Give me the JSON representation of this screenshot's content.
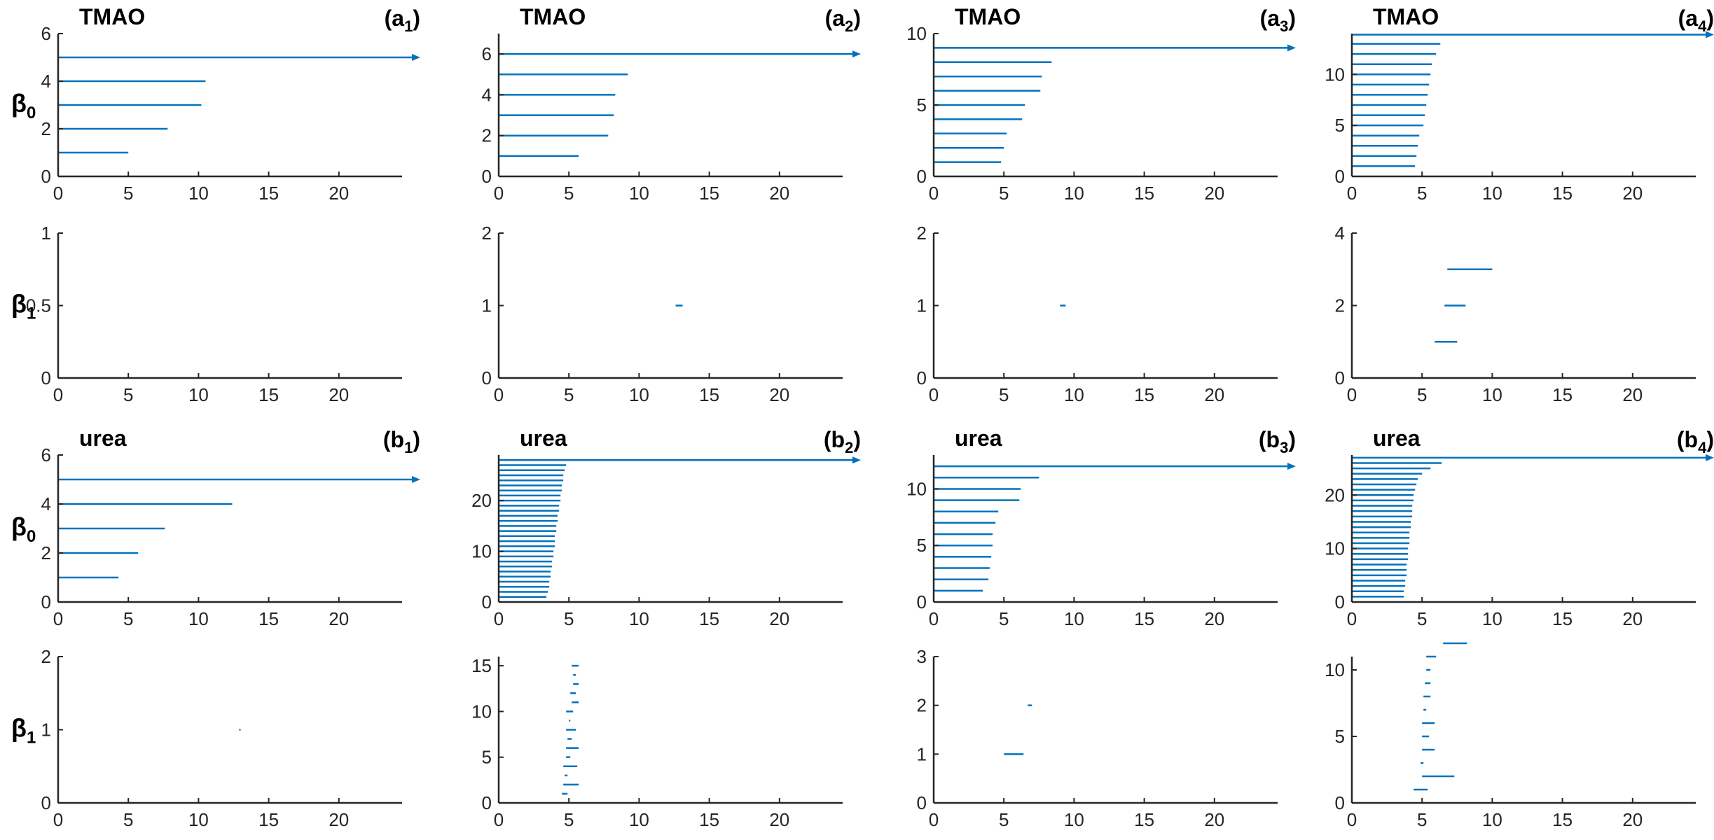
{
  "colors": {
    "bar": "#0072BD",
    "axis": "#262626"
  },
  "chart_data": [
    {
      "type": "barcode",
      "id": "a1-b0",
      "title": "TMAO",
      "panel_label": "a",
      "panel_sub": "1",
      "ylabel": "β",
      "ylabel_sub": "0",
      "xlim": [
        0,
        24.5
      ],
      "ylim": [
        0,
        6
      ],
      "xticks": [
        0,
        5,
        10,
        15,
        20
      ],
      "yticks": [
        0,
        2,
        4,
        6
      ],
      "bars": [
        {
          "y": 1,
          "start": 0,
          "end": 5
        },
        {
          "y": 2,
          "start": 0,
          "end": 7.8
        },
        {
          "y": 3,
          "start": 0,
          "end": 10.2
        },
        {
          "y": 4,
          "start": 0,
          "end": 10.5
        },
        {
          "y": 5,
          "start": 0,
          "end": 24.5,
          "infinite": true
        }
      ]
    },
    {
      "type": "barcode",
      "id": "a2-b0",
      "title": "TMAO",
      "panel_label": "a",
      "panel_sub": "2",
      "xlim": [
        0,
        24.5
      ],
      "ylim": [
        0,
        7
      ],
      "xticks": [
        0,
        5,
        10,
        15,
        20
      ],
      "yticks": [
        0,
        2,
        4,
        6
      ],
      "bars": [
        {
          "y": 1,
          "start": 0,
          "end": 5.7
        },
        {
          "y": 2,
          "start": 0,
          "end": 7.8
        },
        {
          "y": 3,
          "start": 0,
          "end": 8.2
        },
        {
          "y": 4,
          "start": 0,
          "end": 8.3
        },
        {
          "y": 5,
          "start": 0,
          "end": 9.2
        },
        {
          "y": 6,
          "start": 0,
          "end": 24.5,
          "infinite": true
        }
      ]
    },
    {
      "type": "barcode",
      "id": "a3-b0",
      "title": "TMAO",
      "panel_label": "a",
      "panel_sub": "3",
      "xlim": [
        0,
        24.5
      ],
      "ylim": [
        0,
        10
      ],
      "xticks": [
        0,
        5,
        10,
        15,
        20
      ],
      "yticks": [
        0,
        5,
        10
      ],
      "bars": [
        {
          "y": 1,
          "start": 0,
          "end": 4.8
        },
        {
          "y": 2,
          "start": 0,
          "end": 5
        },
        {
          "y": 3,
          "start": 0,
          "end": 5.2
        },
        {
          "y": 4,
          "start": 0,
          "end": 6.3
        },
        {
          "y": 5,
          "start": 0,
          "end": 6.5
        },
        {
          "y": 6,
          "start": 0,
          "end": 7.6
        },
        {
          "y": 7,
          "start": 0,
          "end": 7.7
        },
        {
          "y": 8,
          "start": 0,
          "end": 8.4
        },
        {
          "y": 9,
          "start": 0,
          "end": 24.5,
          "infinite": true
        }
      ]
    },
    {
      "type": "barcode",
      "id": "a4-b0",
      "title": "TMAO",
      "panel_label": "a",
      "panel_sub": "4",
      "xlim": [
        0,
        24.5
      ],
      "ylim": [
        0,
        14
      ],
      "xticks": [
        0,
        5,
        10,
        15,
        20
      ],
      "yticks": [
        0,
        5,
        10
      ],
      "bars": [
        {
          "y": 1,
          "start": 0,
          "end": 4.5
        },
        {
          "y": 2,
          "start": 0,
          "end": 4.6
        },
        {
          "y": 3,
          "start": 0,
          "end": 4.7
        },
        {
          "y": 4,
          "start": 0,
          "end": 4.8
        },
        {
          "y": 5,
          "start": 0,
          "end": 5.1
        },
        {
          "y": 6,
          "start": 0,
          "end": 5.2
        },
        {
          "y": 7,
          "start": 0,
          "end": 5.3
        },
        {
          "y": 8,
          "start": 0,
          "end": 5.4
        },
        {
          "y": 9,
          "start": 0,
          "end": 5.5
        },
        {
          "y": 10,
          "start": 0,
          "end": 5.6
        },
        {
          "y": 11,
          "start": 0,
          "end": 5.7
        },
        {
          "y": 12,
          "start": 0,
          "end": 6
        },
        {
          "y": 13,
          "start": 0,
          "end": 6.3
        },
        {
          "y": 13.9,
          "start": 0,
          "end": 24.5,
          "infinite": true
        }
      ]
    },
    {
      "type": "barcode",
      "id": "a1-b1",
      "ylabel": "β",
      "ylabel_sub": "1",
      "xlim": [
        0,
        24.5
      ],
      "ylim": [
        0,
        1
      ],
      "xticks": [
        0,
        5,
        10,
        15,
        20
      ],
      "yticks": [
        0,
        0.5,
        1
      ],
      "bars": []
    },
    {
      "type": "barcode",
      "id": "a2-b1",
      "xlim": [
        0,
        24.5
      ],
      "ylim": [
        0,
        2
      ],
      "xticks": [
        0,
        5,
        10,
        15,
        20
      ],
      "yticks": [
        0,
        1,
        2
      ],
      "bars": [
        {
          "y": 1,
          "start": 12.6,
          "end": 13.1
        }
      ]
    },
    {
      "type": "barcode",
      "id": "a3-b1",
      "xlim": [
        0,
        24.5
      ],
      "ylim": [
        0,
        2
      ],
      "xticks": [
        0,
        5,
        10,
        15,
        20
      ],
      "yticks": [
        0,
        1,
        2
      ],
      "bars": [
        {
          "y": 1,
          "start": 9,
          "end": 9.4
        }
      ]
    },
    {
      "type": "barcode",
      "id": "a4-b1",
      "xlim": [
        0,
        24.5
      ],
      "ylim": [
        0,
        4
      ],
      "xticks": [
        0,
        5,
        10,
        15,
        20
      ],
      "yticks": [
        0,
        2,
        4
      ],
      "bars": [
        {
          "y": 1,
          "start": 5.9,
          "end": 7.5
        },
        {
          "y": 2,
          "start": 6.6,
          "end": 8.1
        },
        {
          "y": 3,
          "start": 6.8,
          "end": 10
        }
      ]
    },
    {
      "type": "barcode",
      "id": "b1-b0",
      "title": "urea",
      "panel_label": "b",
      "panel_sub": "1",
      "ylabel": "β",
      "ylabel_sub": "0",
      "xlim": [
        0,
        24.5
      ],
      "ylim": [
        0,
        6
      ],
      "xticks": [
        0,
        5,
        10,
        15,
        20
      ],
      "yticks": [
        0,
        2,
        4,
        6
      ],
      "bars": [
        {
          "y": 1,
          "start": 0,
          "end": 4.3
        },
        {
          "y": 2,
          "start": 0,
          "end": 5.7
        },
        {
          "y": 3,
          "start": 0,
          "end": 7.6
        },
        {
          "y": 4,
          "start": 0,
          "end": 12.4
        },
        {
          "y": 5,
          "start": 0,
          "end": 24.5,
          "infinite": true
        }
      ]
    },
    {
      "type": "barcode",
      "id": "b2-b0",
      "title": "urea",
      "panel_label": "b",
      "panel_sub": "2",
      "xlim": [
        0,
        24.5
      ],
      "ylim": [
        0,
        29
      ],
      "xticks": [
        0,
        5,
        10,
        15,
        20
      ],
      "yticks": [
        0,
        10,
        20
      ],
      "bars": [
        {
          "y": 1,
          "start": 0,
          "end": 3.4
        },
        {
          "y": 2,
          "start": 0,
          "end": 3.5
        },
        {
          "y": 3,
          "start": 0,
          "end": 3.6
        },
        {
          "y": 4,
          "start": 0,
          "end": 3.6
        },
        {
          "y": 5,
          "start": 0,
          "end": 3.7
        },
        {
          "y": 6,
          "start": 0,
          "end": 3.7
        },
        {
          "y": 7,
          "start": 0,
          "end": 3.8
        },
        {
          "y": 8,
          "start": 0,
          "end": 3.8
        },
        {
          "y": 9,
          "start": 0,
          "end": 3.9
        },
        {
          "y": 10,
          "start": 0,
          "end": 3.9
        },
        {
          "y": 11,
          "start": 0,
          "end": 4.0
        },
        {
          "y": 12,
          "start": 0,
          "end": 4.0
        },
        {
          "y": 13,
          "start": 0,
          "end": 4.0
        },
        {
          "y": 14,
          "start": 0,
          "end": 4.1
        },
        {
          "y": 15,
          "start": 0,
          "end": 4.1
        },
        {
          "y": 16,
          "start": 0,
          "end": 4.2
        },
        {
          "y": 17,
          "start": 0,
          "end": 4.2
        },
        {
          "y": 18,
          "start": 0,
          "end": 4.3
        },
        {
          "y": 19,
          "start": 0,
          "end": 4.3
        },
        {
          "y": 20,
          "start": 0,
          "end": 4.4
        },
        {
          "y": 21,
          "start": 0,
          "end": 4.4
        },
        {
          "y": 22,
          "start": 0,
          "end": 4.5
        },
        {
          "y": 23,
          "start": 0,
          "end": 4.5
        },
        {
          "y": 24,
          "start": 0,
          "end": 4.6
        },
        {
          "y": 25,
          "start": 0,
          "end": 4.6
        },
        {
          "y": 26,
          "start": 0,
          "end": 4.7
        },
        {
          "y": 27,
          "start": 0,
          "end": 4.8
        },
        {
          "y": 28,
          "start": 0,
          "end": 24.5,
          "infinite": true
        }
      ]
    },
    {
      "type": "barcode",
      "id": "b3-b0",
      "title": "urea",
      "panel_label": "b",
      "panel_sub": "3",
      "xlim": [
        0,
        24.5
      ],
      "ylim": [
        0,
        13
      ],
      "xticks": [
        0,
        5,
        10,
        15,
        20
      ],
      "yticks": [
        0,
        5,
        10
      ],
      "bars": [
        {
          "y": 1,
          "start": 0,
          "end": 3.5
        },
        {
          "y": 2,
          "start": 0,
          "end": 3.9
        },
        {
          "y": 3,
          "start": 0,
          "end": 4.0
        },
        {
          "y": 4,
          "start": 0,
          "end": 4.1
        },
        {
          "y": 5,
          "start": 0,
          "end": 4.2
        },
        {
          "y": 6,
          "start": 0,
          "end": 4.2
        },
        {
          "y": 7,
          "start": 0,
          "end": 4.4
        },
        {
          "y": 8,
          "start": 0,
          "end": 4.6
        },
        {
          "y": 9,
          "start": 0,
          "end": 6.1
        },
        {
          "y": 10,
          "start": 0,
          "end": 6.2
        },
        {
          "y": 11,
          "start": 0,
          "end": 7.5
        },
        {
          "y": 12,
          "start": 0,
          "end": 24.5,
          "infinite": true
        }
      ]
    },
    {
      "type": "barcode",
      "id": "b4-b0",
      "title": "urea",
      "panel_label": "b",
      "panel_sub": "4",
      "xlim": [
        0,
        24.5
      ],
      "ylim": [
        0,
        27.5
      ],
      "xticks": [
        0,
        5,
        10,
        15,
        20
      ],
      "yticks": [
        0,
        10,
        20
      ],
      "bars": [
        {
          "y": 1,
          "start": 0,
          "end": 3.7
        },
        {
          "y": 2,
          "start": 0,
          "end": 3.7
        },
        {
          "y": 3,
          "start": 0,
          "end": 3.8
        },
        {
          "y": 4,
          "start": 0,
          "end": 3.8
        },
        {
          "y": 5,
          "start": 0,
          "end": 3.9
        },
        {
          "y": 6,
          "start": 0,
          "end": 3.9
        },
        {
          "y": 7,
          "start": 0,
          "end": 3.9
        },
        {
          "y": 8,
          "start": 0,
          "end": 4.0
        },
        {
          "y": 9,
          "start": 0,
          "end": 4.0
        },
        {
          "y": 10,
          "start": 0,
          "end": 4.0
        },
        {
          "y": 11,
          "start": 0,
          "end": 4.1
        },
        {
          "y": 12,
          "start": 0,
          "end": 4.1
        },
        {
          "y": 13,
          "start": 0,
          "end": 4.1
        },
        {
          "y": 14,
          "start": 0,
          "end": 4.2
        },
        {
          "y": 15,
          "start": 0,
          "end": 4.2
        },
        {
          "y": 16,
          "start": 0,
          "end": 4.3
        },
        {
          "y": 17,
          "start": 0,
          "end": 4.3
        },
        {
          "y": 18,
          "start": 0,
          "end": 4.3
        },
        {
          "y": 19,
          "start": 0,
          "end": 4.4
        },
        {
          "y": 20,
          "start": 0,
          "end": 4.4
        },
        {
          "y": 21,
          "start": 0,
          "end": 4.5
        },
        {
          "y": 22,
          "start": 0,
          "end": 4.6
        },
        {
          "y": 23,
          "start": 0,
          "end": 4.7
        },
        {
          "y": 24,
          "start": 0,
          "end": 5.0
        },
        {
          "y": 25,
          "start": 0,
          "end": 5.6
        },
        {
          "y": 26,
          "start": 0,
          "end": 6.4
        },
        {
          "y": 27,
          "start": 0,
          "end": 24.5,
          "infinite": true
        }
      ]
    },
    {
      "type": "barcode",
      "id": "b1-b1",
      "ylabel": "β",
      "ylabel_sub": "1",
      "xlim": [
        0,
        24.5
      ],
      "ylim": [
        0,
        2
      ],
      "xticks": [
        0,
        5,
        10,
        15,
        20
      ],
      "yticks": [
        0,
        1,
        2
      ],
      "bars": [
        {
          "y": 1,
          "start": 12.9,
          "end": 13.0
        }
      ]
    },
    {
      "type": "barcode",
      "id": "b2-b1",
      "xlim": [
        0,
        24.5
      ],
      "ylim": [
        0,
        16
      ],
      "xticks": [
        0,
        5,
        10,
        15,
        20
      ],
      "yticks": [
        0,
        5,
        10,
        15
      ],
      "bars": [
        {
          "y": 1,
          "start": 4.5,
          "end": 4.9
        },
        {
          "y": 2,
          "start": 4.6,
          "end": 5.7
        },
        {
          "y": 3,
          "start": 4.7,
          "end": 4.9
        },
        {
          "y": 4,
          "start": 4.6,
          "end": 5.6
        },
        {
          "y": 5,
          "start": 4.8,
          "end": 5.1
        },
        {
          "y": 6,
          "start": 4.8,
          "end": 5.7
        },
        {
          "y": 7,
          "start": 4.9,
          "end": 5.2
        },
        {
          "y": 8,
          "start": 4.8,
          "end": 5.5
        },
        {
          "y": 9,
          "start": 5.0,
          "end": 5.1
        },
        {
          "y": 10,
          "start": 4.8,
          "end": 5.3
        },
        {
          "y": 11,
          "start": 5.2,
          "end": 5.7
        },
        {
          "y": 12,
          "start": 5.1,
          "end": 5.5
        },
        {
          "y": 13,
          "start": 5.3,
          "end": 5.7
        },
        {
          "y": 14,
          "start": 5.3,
          "end": 5.5
        },
        {
          "y": 15,
          "start": 5.2,
          "end": 5.7
        }
      ]
    },
    {
      "type": "barcode",
      "id": "b3-b1",
      "xlim": [
        0,
        24.5
      ],
      "ylim": [
        0,
        3
      ],
      "xticks": [
        0,
        5,
        10,
        15,
        20
      ],
      "yticks": [
        0,
        1,
        2,
        3
      ],
      "bars": [
        {
          "y": 1,
          "start": 5.0,
          "end": 6.4
        },
        {
          "y": 2,
          "start": 6.7,
          "end": 7.0
        }
      ]
    },
    {
      "type": "barcode",
      "id": "b4-b1",
      "xlim": [
        0,
        24.5
      ],
      "ylim": [
        0,
        11
      ],
      "xticks": [
        0,
        5,
        10,
        15,
        20
      ],
      "yticks": [
        0,
        5,
        10
      ],
      "bars": [
        {
          "y": 1,
          "start": 4.4,
          "end": 5.4
        },
        {
          "y": 2,
          "start": 5.0,
          "end": 7.3
        },
        {
          "y": 3,
          "start": 4.9,
          "end": 5.1
        },
        {
          "y": 4,
          "start": 5.0,
          "end": 5.9
        },
        {
          "y": 5,
          "start": 5.0,
          "end": 5.5
        },
        {
          "y": 6,
          "start": 5.0,
          "end": 5.9
        },
        {
          "y": 7,
          "start": 5.1,
          "end": 5.3
        },
        {
          "y": 8,
          "start": 5.1,
          "end": 5.6
        },
        {
          "y": 9,
          "start": 5.2,
          "end": 5.6
        },
        {
          "y": 10,
          "start": 5.3,
          "end": 5.6
        },
        {
          "y": 11,
          "start": 5.3,
          "end": 6.0
        },
        {
          "y": 12,
          "start": 6.5,
          "end": 8.2
        }
      ]
    }
  ]
}
